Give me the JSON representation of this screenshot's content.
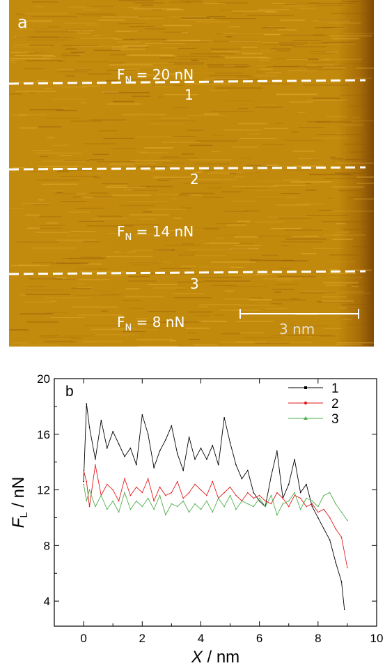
{
  "panel_a": {
    "label": "a",
    "lines": [
      {
        "id": "1",
        "force_label": "F",
        "force_sub": "N",
        "force_value": "= 20 nN"
      },
      {
        "id": "2",
        "force_label": "F",
        "force_sub": "N",
        "force_value": "= 14 nN"
      },
      {
        "id": "3",
        "force_label": "F",
        "force_sub": "N",
        "force_value": "= 8 nN"
      }
    ],
    "scale_bar": "3 nm",
    "colors": {
      "light": "#c8900c",
      "dark": "#8a5206",
      "line": "#ffffff"
    }
  },
  "chart_data": {
    "type": "line",
    "panel_label": "b",
    "xlabel": "X / nm",
    "ylabel": "F_L / nN",
    "xlim": [
      -1,
      10
    ],
    "ylim": [
      2.2,
      20
    ],
    "xticks": [
      0,
      2,
      4,
      6,
      8,
      10
    ],
    "yticks": [
      4,
      8,
      12,
      16,
      20
    ],
    "legend_position": "top-right",
    "series": [
      {
        "name": "1",
        "color": "#000000",
        "marker": "square",
        "x": [
          0,
          0.1,
          0.2,
          0.4,
          0.6,
          0.8,
          1.0,
          1.2,
          1.4,
          1.6,
          1.8,
          2.0,
          2.2,
          2.4,
          2.6,
          2.8,
          3.0,
          3.2,
          3.4,
          3.6,
          3.8,
          4.0,
          4.2,
          4.4,
          4.6,
          4.8,
          5.0,
          5.2,
          5.4,
          5.6,
          5.8,
          6.0,
          6.2,
          6.4,
          6.6,
          6.8,
          7.0,
          7.2,
          7.4,
          7.6,
          7.8,
          8.0,
          8.2,
          8.4,
          8.6,
          8.8,
          8.9
        ],
        "y": [
          12.6,
          18.2,
          16.5,
          14.2,
          17.0,
          15.0,
          16.2,
          15.3,
          14.4,
          15.0,
          13.8,
          17.4,
          16.0,
          13.6,
          14.8,
          15.6,
          16.6,
          14.6,
          13.4,
          15.8,
          14.2,
          15.0,
          14.2,
          15.2,
          13.8,
          17.2,
          15.4,
          13.8,
          12.8,
          13.4,
          11.8,
          11.2,
          10.8,
          13.0,
          14.8,
          11.4,
          12.4,
          14.2,
          11.8,
          12.4,
          10.8,
          10.0,
          9.2,
          8.4,
          6.8,
          5.4,
          3.4
        ]
      },
      {
        "name": "2",
        "color": "#e41a1c",
        "marker": "circle",
        "x": [
          0,
          0.1,
          0.2,
          0.4,
          0.6,
          0.8,
          1.0,
          1.2,
          1.4,
          1.6,
          1.8,
          2.0,
          2.2,
          2.4,
          2.6,
          2.8,
          3.0,
          3.2,
          3.4,
          3.6,
          3.8,
          4.0,
          4.2,
          4.4,
          4.6,
          4.8,
          5.0,
          5.2,
          5.4,
          5.6,
          5.8,
          6.0,
          6.2,
          6.4,
          6.6,
          6.8,
          7.0,
          7.2,
          7.4,
          7.6,
          7.8,
          8.0,
          8.2,
          8.4,
          8.6,
          8.8,
          9.0
        ],
        "y": [
          13.4,
          12.6,
          10.8,
          13.8,
          11.6,
          12.4,
          12.0,
          11.2,
          12.8,
          11.6,
          12.2,
          11.8,
          12.8,
          11.2,
          12.2,
          11.6,
          11.8,
          12.6,
          11.4,
          11.8,
          12.4,
          12.0,
          11.6,
          12.6,
          11.4,
          11.8,
          12.2,
          11.6,
          11.2,
          11.8,
          11.4,
          11.6,
          11.2,
          11.0,
          11.8,
          11.4,
          10.8,
          11.6,
          11.4,
          10.8,
          11.0,
          10.4,
          10.6,
          10.0,
          9.2,
          8.6,
          6.4
        ]
      },
      {
        "name": "3",
        "color": "#4daf4a",
        "marker": "triangle",
        "x": [
          0,
          0.1,
          0.2,
          0.4,
          0.6,
          0.8,
          1.0,
          1.2,
          1.4,
          1.6,
          1.8,
          2.0,
          2.2,
          2.4,
          2.6,
          2.8,
          3.0,
          3.2,
          3.4,
          3.6,
          3.8,
          4.0,
          4.2,
          4.4,
          4.6,
          4.8,
          5.0,
          5.2,
          5.4,
          5.6,
          5.8,
          6.0,
          6.2,
          6.4,
          6.6,
          6.8,
          7.0,
          7.2,
          7.4,
          7.6,
          7.8,
          8.0,
          8.2,
          8.4,
          8.6,
          8.8,
          9.0
        ],
        "y": [
          12.4,
          11.2,
          12.0,
          10.8,
          11.6,
          10.6,
          11.2,
          10.4,
          11.8,
          10.6,
          11.2,
          10.8,
          11.4,
          10.6,
          11.6,
          10.2,
          11.0,
          10.8,
          11.2,
          10.4,
          11.0,
          10.6,
          11.2,
          10.4,
          11.4,
          10.8,
          11.6,
          10.6,
          11.2,
          11.0,
          10.8,
          11.4,
          10.8,
          11.6,
          10.2,
          11.0,
          11.2,
          11.8,
          10.6,
          11.4,
          11.2,
          10.8,
          11.6,
          11.8,
          11.0,
          10.4,
          9.8
        ]
      }
    ]
  }
}
